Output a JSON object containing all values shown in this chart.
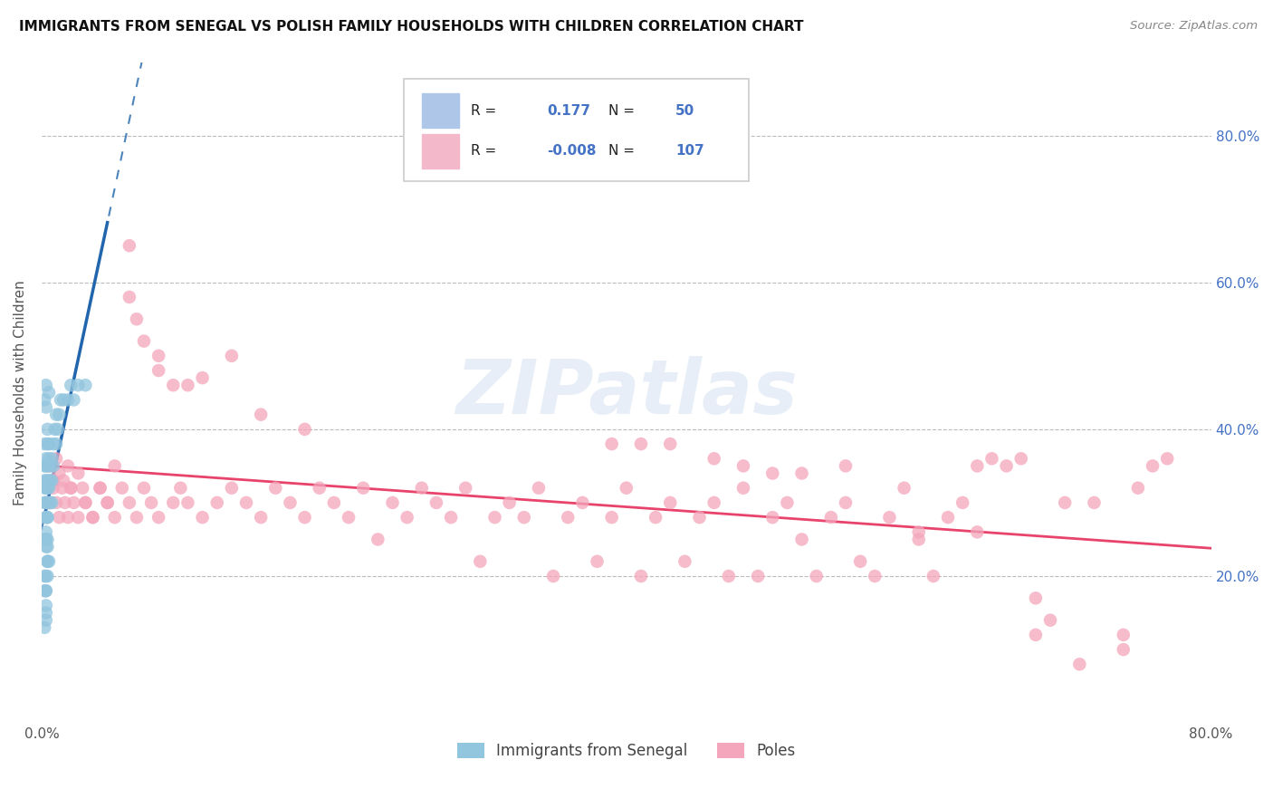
{
  "title": "IMMIGRANTS FROM SENEGAL VS POLISH FAMILY HOUSEHOLDS WITH CHILDREN CORRELATION CHART",
  "source": "Source: ZipAtlas.com",
  "ylabel": "Family Households with Children",
  "legend_labels": [
    "Immigrants from Senegal",
    "Poles"
  ],
  "r_senegal": 0.177,
  "n_senegal": 50,
  "r_poles": -0.008,
  "n_poles": 107,
  "xlim": [
    0.0,
    0.8
  ],
  "ylim": [
    0.0,
    0.9
  ],
  "color_senegal": "#92c5de",
  "color_poles": "#f4a6bc",
  "trend_color_senegal": "#2166ac",
  "trend_color_poles": "#e8436a",
  "background_color": "#ffffff",
  "grid_color": "#bbbbbb",
  "watermark": "ZIPatlas",
  "legend_box_color_senegal": "#aec6e8",
  "legend_box_color_poles": "#f4b8cb",
  "right_tick_color": "#4472c4",
  "senegal_x": [
    0.002,
    0.002,
    0.002,
    0.002,
    0.002,
    0.003,
    0.003,
    0.003,
    0.003,
    0.003,
    0.003,
    0.003,
    0.003,
    0.003,
    0.004,
    0.004,
    0.004,
    0.004,
    0.004,
    0.004,
    0.005,
    0.005,
    0.005,
    0.005,
    0.005,
    0.006,
    0.006,
    0.006,
    0.007,
    0.007,
    0.007,
    0.008,
    0.008,
    0.009,
    0.01,
    0.01,
    0.011,
    0.012,
    0.013,
    0.015,
    0.018,
    0.02,
    0.022,
    0.025,
    0.03,
    0.002,
    0.003,
    0.004,
    0.005,
    0.003
  ],
  "senegal_y": [
    0.32,
    0.35,
    0.3,
    0.38,
    0.33,
    0.3,
    0.32,
    0.35,
    0.28,
    0.33,
    0.36,
    0.3,
    0.28,
    0.25,
    0.33,
    0.35,
    0.3,
    0.38,
    0.32,
    0.28,
    0.36,
    0.33,
    0.3,
    0.38,
    0.32,
    0.35,
    0.33,
    0.3,
    0.36,
    0.33,
    0.3,
    0.38,
    0.35,
    0.4,
    0.42,
    0.38,
    0.4,
    0.42,
    0.44,
    0.44,
    0.44,
    0.46,
    0.44,
    0.46,
    0.46,
    0.44,
    0.43,
    0.4,
    0.45,
    0.46
  ],
  "senegal_outliers_x": [
    0.003,
    0.004,
    0.004,
    0.003,
    0.004,
    0.002,
    0.003,
    0.003,
    0.004,
    0.003,
    0.003,
    0.004,
    0.005,
    0.002,
    0.003,
    0.004,
    0.003,
    0.002,
    0.003,
    0.002
  ],
  "senegal_outliers_y": [
    0.24,
    0.22,
    0.2,
    0.18,
    0.22,
    0.2,
    0.18,
    0.16,
    0.24,
    0.2,
    0.15,
    0.25,
    0.22,
    0.18,
    0.25,
    0.28,
    0.26,
    0.25,
    0.14,
    0.13
  ],
  "poles_x_low": [
    0.005,
    0.008,
    0.01,
    0.012,
    0.014,
    0.016,
    0.018,
    0.02,
    0.022,
    0.025,
    0.028,
    0.03,
    0.035,
    0.04,
    0.045,
    0.05,
    0.055,
    0.06,
    0.065,
    0.07,
    0.075,
    0.08,
    0.09,
    0.095,
    0.1,
    0.11,
    0.12,
    0.005,
    0.008,
    0.01,
    0.012,
    0.015,
    0.018,
    0.02,
    0.025,
    0.03,
    0.035,
    0.04,
    0.045,
    0.05
  ],
  "poles_y_low": [
    0.3,
    0.32,
    0.3,
    0.28,
    0.32,
    0.3,
    0.28,
    0.32,
    0.3,
    0.28,
    0.32,
    0.3,
    0.28,
    0.32,
    0.3,
    0.28,
    0.32,
    0.3,
    0.28,
    0.32,
    0.3,
    0.28,
    0.3,
    0.32,
    0.3,
    0.28,
    0.3,
    0.35,
    0.33,
    0.36,
    0.34,
    0.33,
    0.35,
    0.32,
    0.34,
    0.3,
    0.28,
    0.32,
    0.3,
    0.35
  ],
  "poles_x_mid": [
    0.13,
    0.14,
    0.15,
    0.16,
    0.17,
    0.18,
    0.19,
    0.2,
    0.21,
    0.22,
    0.23,
    0.24,
    0.25,
    0.26,
    0.27,
    0.28,
    0.29,
    0.3,
    0.31,
    0.32,
    0.33,
    0.34,
    0.35,
    0.36,
    0.37,
    0.38,
    0.39,
    0.4,
    0.41,
    0.42,
    0.43,
    0.44,
    0.45,
    0.46,
    0.47
  ],
  "poles_y_mid": [
    0.32,
    0.3,
    0.28,
    0.32,
    0.3,
    0.28,
    0.32,
    0.3,
    0.28,
    0.32,
    0.25,
    0.3,
    0.28,
    0.32,
    0.3,
    0.28,
    0.32,
    0.22,
    0.28,
    0.3,
    0.28,
    0.32,
    0.2,
    0.28,
    0.3,
    0.22,
    0.28,
    0.32,
    0.2,
    0.28,
    0.3,
    0.22,
    0.28,
    0.3,
    0.2
  ],
  "poles_x_high": [
    0.48,
    0.49,
    0.5,
    0.51,
    0.52,
    0.53,
    0.54,
    0.55,
    0.56,
    0.57,
    0.58,
    0.59,
    0.6,
    0.61,
    0.62,
    0.63,
    0.64,
    0.65,
    0.66,
    0.67,
    0.68,
    0.69,
    0.7,
    0.72,
    0.74,
    0.75,
    0.76,
    0.77
  ],
  "poles_y_high": [
    0.32,
    0.2,
    0.28,
    0.3,
    0.25,
    0.2,
    0.28,
    0.3,
    0.22,
    0.2,
    0.28,
    0.32,
    0.25,
    0.2,
    0.28,
    0.3,
    0.35,
    0.36,
    0.35,
    0.36,
    0.12,
    0.14,
    0.3,
    0.3,
    0.12,
    0.32,
    0.35,
    0.36
  ],
  "poles_x_special": [
    0.06,
    0.06,
    0.065,
    0.07,
    0.08,
    0.08,
    0.09,
    0.1,
    0.11,
    0.13,
    0.15,
    0.18,
    0.39,
    0.41,
    0.43,
    0.46,
    0.48,
    0.5,
    0.52,
    0.55,
    0.6,
    0.64,
    0.68,
    0.71,
    0.74
  ],
  "poles_y_special": [
    0.65,
    0.58,
    0.55,
    0.52,
    0.48,
    0.5,
    0.46,
    0.46,
    0.47,
    0.5,
    0.42,
    0.4,
    0.38,
    0.38,
    0.38,
    0.36,
    0.35,
    0.34,
    0.34,
    0.35,
    0.26,
    0.26,
    0.17,
    0.08,
    0.1
  ]
}
